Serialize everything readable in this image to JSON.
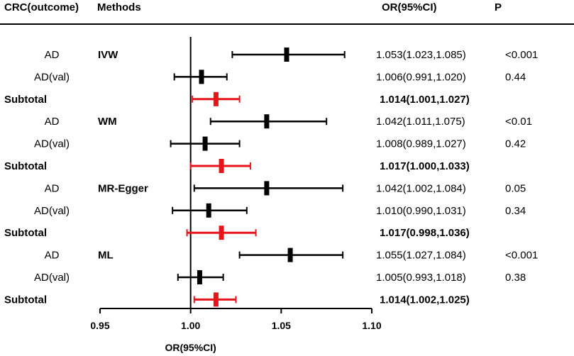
{
  "headers": {
    "outcome": "CRC(outcome)",
    "methods": "Methods",
    "or_ci": "OR(95%CI)",
    "p": "P"
  },
  "colors": {
    "normal": "#000000",
    "subtotal": "#e8141c"
  },
  "chart_data": {
    "type": "forest",
    "title": "",
    "xlabel": "OR(95%CI)",
    "xlim": [
      0.95,
      1.1
    ],
    "xticks": [
      "0.95",
      "1.00",
      "1.05",
      "1.10"
    ],
    "reference_line": 1.0,
    "rows": [
      {
        "label": "AD",
        "method": "IVW",
        "or": 1.053,
        "lo": 1.023,
        "hi": 1.085,
        "text": "1.053(1.023,1.085)",
        "p": "<0.001",
        "subtotal": false
      },
      {
        "label": "AD(val)",
        "method": "",
        "or": 1.006,
        "lo": 0.991,
        "hi": 1.02,
        "text": "1.006(0.991,1.020)",
        "p": "0.44",
        "subtotal": false
      },
      {
        "label": "Subtotal",
        "method": "",
        "or": 1.014,
        "lo": 1.001,
        "hi": 1.027,
        "text": "1.014(1.001,1.027)",
        "p": "",
        "subtotal": true
      },
      {
        "label": "AD",
        "method": "WM",
        "or": 1.042,
        "lo": 1.011,
        "hi": 1.075,
        "text": "1.042(1.011,1.075)",
        "p": "<0.01",
        "subtotal": false
      },
      {
        "label": "AD(val)",
        "method": "",
        "or": 1.008,
        "lo": 0.989,
        "hi": 1.027,
        "text": "1.008(0.989,1.027)",
        "p": "0.42",
        "subtotal": false
      },
      {
        "label": "Subtotal",
        "method": "",
        "or": 1.017,
        "lo": 1.0,
        "hi": 1.033,
        "text": "1.017(1.000,1.033)",
        "p": "",
        "subtotal": true
      },
      {
        "label": "AD",
        "method": "MR-Egger",
        "or": 1.042,
        "lo": 1.002,
        "hi": 1.084,
        "text": "1.042(1.002,1.084)",
        "p": "0.05",
        "subtotal": false
      },
      {
        "label": "AD(val)",
        "method": "",
        "or": 1.01,
        "lo": 0.99,
        "hi": 1.031,
        "text": "1.010(0.990,1.031)",
        "p": "0.34",
        "subtotal": false
      },
      {
        "label": "Subtotal",
        "method": "",
        "or": 1.017,
        "lo": 0.998,
        "hi": 1.036,
        "text": "1.017(0.998,1.036)",
        "p": "",
        "subtotal": true
      },
      {
        "label": "AD",
        "method": "ML",
        "or": 1.055,
        "lo": 1.027,
        "hi": 1.084,
        "text": "1.055(1.027,1.084)",
        "p": "<0.001",
        "subtotal": false
      },
      {
        "label": "AD(val)",
        "method": "",
        "or": 1.005,
        "lo": 0.993,
        "hi": 1.018,
        "text": "1.005(0.993,1.018)",
        "p": "0.38",
        "subtotal": false
      },
      {
        "label": "Subtotal",
        "method": "",
        "or": 1.014,
        "lo": 1.002,
        "hi": 1.025,
        "text": "1.014(1.002,1.025)",
        "p": "",
        "subtotal": true
      }
    ]
  }
}
